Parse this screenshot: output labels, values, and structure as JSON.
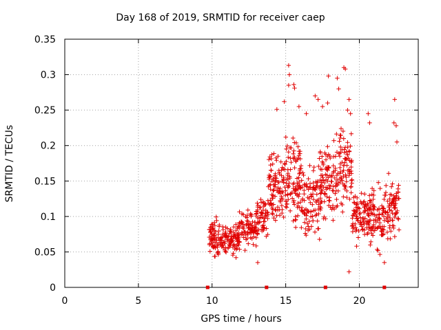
{
  "chart_data": {
    "type": "scatter",
    "title": "Day 168 of 2019, SRMTID for receiver caep",
    "xlabel": "GPS time / hours",
    "ylabel": "SRMTID / TECUs",
    "xlim": [
      0,
      24
    ],
    "ylim": [
      0,
      0.35
    ],
    "xticks": [
      0,
      5,
      10,
      15,
      20
    ],
    "yticks": [
      0,
      0.05,
      0.1,
      0.15,
      0.2,
      0.25,
      0.3,
      0.35
    ],
    "xtick_labels": [
      "0",
      "5",
      "10",
      "15",
      "20"
    ],
    "ytick_labels": [
      "0",
      "0.05",
      "0.1",
      "0.15",
      "0.2",
      "0.25",
      "0.3",
      "0.35"
    ],
    "grid": true,
    "marker": "+",
    "color": "#e00000",
    "series": [
      {
        "name": "SRMTID",
        "segments": [
          {
            "x_start": 9.8,
            "x_end": 10.6,
            "center": 0.07,
            "spread": 0.035,
            "count": 70
          },
          {
            "x_start": 10.6,
            "x_end": 11.8,
            "center": 0.068,
            "spread": 0.03,
            "count": 90
          },
          {
            "x_start": 11.8,
            "x_end": 13.0,
            "center": 0.082,
            "spread": 0.04,
            "count": 90
          },
          {
            "x_start": 13.0,
            "x_end": 13.8,
            "center": 0.1,
            "spread": 0.045,
            "count": 60
          },
          {
            "x_start": 13.8,
            "x_end": 14.8,
            "center": 0.14,
            "spread": 0.07,
            "count": 90
          },
          {
            "x_start": 14.8,
            "x_end": 16.0,
            "center": 0.15,
            "spread": 0.09,
            "count": 110
          },
          {
            "x_start": 16.0,
            "x_end": 17.3,
            "center": 0.125,
            "spread": 0.07,
            "count": 100
          },
          {
            "x_start": 17.3,
            "x_end": 18.6,
            "center": 0.15,
            "spread": 0.08,
            "count": 110
          },
          {
            "x_start": 18.6,
            "x_end": 19.5,
            "center": 0.17,
            "spread": 0.09,
            "count": 80
          },
          {
            "x_start": 19.5,
            "x_end": 20.6,
            "center": 0.1,
            "spread": 0.05,
            "count": 90
          },
          {
            "x_start": 20.6,
            "x_end": 21.7,
            "center": 0.1,
            "spread": 0.06,
            "count": 90
          },
          {
            "x_start": 21.7,
            "x_end": 22.7,
            "center": 0.11,
            "spread": 0.055,
            "count": 80
          }
        ],
        "peaks": [
          [
            14.4,
            0.251
          ],
          [
            14.9,
            0.262
          ],
          [
            15.2,
            0.313
          ],
          [
            15.25,
            0.3
          ],
          [
            15.2,
            0.285
          ],
          [
            15.55,
            0.286
          ],
          [
            15.6,
            0.281
          ],
          [
            15.9,
            0.255
          ],
          [
            16.4,
            0.245
          ],
          [
            17.0,
            0.27
          ],
          [
            17.2,
            0.265
          ],
          [
            17.5,
            0.255
          ],
          [
            17.9,
            0.298
          ],
          [
            17.85,
            0.26
          ],
          [
            18.5,
            0.295
          ],
          [
            18.6,
            0.28
          ],
          [
            18.95,
            0.31
          ],
          [
            19.05,
            0.308
          ],
          [
            19.2,
            0.25
          ],
          [
            19.3,
            0.265
          ],
          [
            19.4,
            0.245
          ],
          [
            20.6,
            0.245
          ],
          [
            20.7,
            0.232
          ],
          [
            22.4,
            0.265
          ],
          [
            22.35,
            0.232
          ],
          [
            22.5,
            0.228
          ],
          [
            22.55,
            0.205
          ],
          [
            19.3,
            0.022
          ],
          [
            21.7,
            0.035
          ],
          [
            13.1,
            0.035
          ]
        ],
        "axis_markers": [
          9.7,
          13.7,
          17.7,
          21.7
        ]
      }
    ]
  }
}
